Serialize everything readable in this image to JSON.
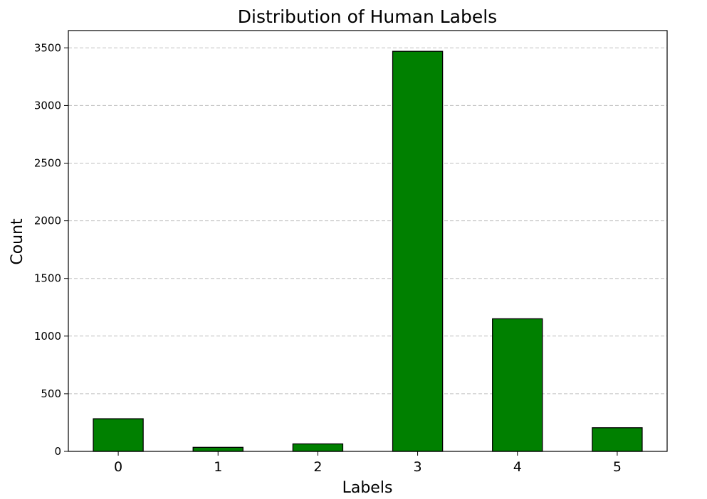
{
  "chart_data": {
    "type": "bar",
    "title": "Distribution of Human Labels",
    "xlabel": "Labels",
    "ylabel": "Count",
    "categories": [
      "0",
      "1",
      "2",
      "3",
      "4",
      "5"
    ],
    "values": [
      283,
      35,
      65,
      3470,
      1150,
      205
    ],
    "ylim": [
      0,
      3650
    ],
    "yticks": [
      0,
      500,
      1000,
      1500,
      2000,
      2500,
      3000,
      3500
    ],
    "ytick_labels": [
      "0",
      "500",
      "1000",
      "1500",
      "2000",
      "2500",
      "3000",
      "3500"
    ],
    "grid": "y-dashed",
    "legend": "none",
    "colors": {
      "bar_fill": "#008000",
      "bar_edge": "#000000"
    }
  }
}
